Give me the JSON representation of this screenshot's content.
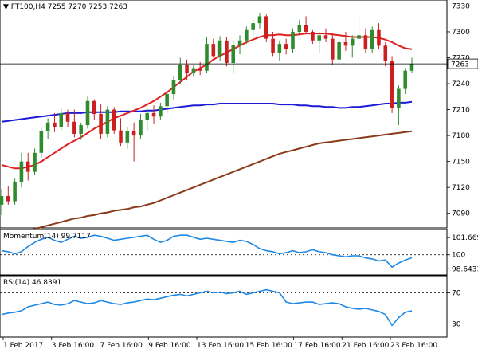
{
  "chart_data": {
    "type": "candlestick-with-indicators",
    "main": {
      "symbol_label": "FT100,H4",
      "ohlc_label": "7255 7270 7253 7263",
      "current_price": 7263,
      "price_label": "7263",
      "ylim": [
        7075,
        7335
      ],
      "yticks": [
        7330,
        7300,
        7270,
        7240,
        7210,
        7180,
        7150,
        7120,
        7090
      ],
      "candles": [
        {
          "o": 7100,
          "h": 7118,
          "l": 7088,
          "c": 7110
        },
        {
          "o": 7110,
          "h": 7122,
          "l": 7100,
          "c": 7104
        },
        {
          "o": 7104,
          "h": 7130,
          "l": 7100,
          "c": 7126
        },
        {
          "o": 7126,
          "h": 7160,
          "l": 7120,
          "c": 7150
        },
        {
          "o": 7150,
          "h": 7160,
          "l": 7128,
          "c": 7138
        },
        {
          "o": 7138,
          "h": 7165,
          "l": 7134,
          "c": 7160
        },
        {
          "o": 7160,
          "h": 7188,
          "l": 7155,
          "c": 7185
        },
        {
          "o": 7185,
          "h": 7200,
          "l": 7176,
          "c": 7195
        },
        {
          "o": 7195,
          "h": 7206,
          "l": 7184,
          "c": 7190
        },
        {
          "o": 7190,
          "h": 7212,
          "l": 7186,
          "c": 7206
        },
        {
          "o": 7206,
          "h": 7210,
          "l": 7190,
          "c": 7196
        },
        {
          "o": 7196,
          "h": 7210,
          "l": 7178,
          "c": 7182
        },
        {
          "o": 7182,
          "h": 7195,
          "l": 7175,
          "c": 7192
        },
        {
          "o": 7192,
          "h": 7225,
          "l": 7188,
          "c": 7220
        },
        {
          "o": 7220,
          "h": 7222,
          "l": 7198,
          "c": 7205
        },
        {
          "o": 7205,
          "h": 7216,
          "l": 7176,
          "c": 7182
        },
        {
          "o": 7182,
          "h": 7214,
          "l": 7178,
          "c": 7210
        },
        {
          "o": 7210,
          "h": 7213,
          "l": 7182,
          "c": 7186
        },
        {
          "o": 7186,
          "h": 7200,
          "l": 7168,
          "c": 7172
        },
        {
          "o": 7172,
          "h": 7190,
          "l": 7165,
          "c": 7185
        },
        {
          "o": 7185,
          "h": 7195,
          "l": 7150,
          "c": 7180
        },
        {
          "o": 7180,
          "h": 7205,
          "l": 7176,
          "c": 7198
        },
        {
          "o": 7198,
          "h": 7212,
          "l": 7186,
          "c": 7206
        },
        {
          "o": 7206,
          "h": 7215,
          "l": 7194,
          "c": 7202
        },
        {
          "o": 7202,
          "h": 7218,
          "l": 7198,
          "c": 7214
        },
        {
          "o": 7214,
          "h": 7232,
          "l": 7206,
          "c": 7228
        },
        {
          "o": 7228,
          "h": 7248,
          "l": 7222,
          "c": 7244
        },
        {
          "o": 7244,
          "h": 7270,
          "l": 7240,
          "c": 7262
        },
        {
          "o": 7262,
          "h": 7268,
          "l": 7244,
          "c": 7252
        },
        {
          "o": 7252,
          "h": 7262,
          "l": 7248,
          "c": 7258
        },
        {
          "o": 7258,
          "h": 7265,
          "l": 7250,
          "c": 7255
        },
        {
          "o": 7255,
          "h": 7294,
          "l": 7252,
          "c": 7286
        },
        {
          "o": 7286,
          "h": 7292,
          "l": 7270,
          "c": 7272
        },
        {
          "o": 7272,
          "h": 7295,
          "l": 7266,
          "c": 7290
        },
        {
          "o": 7290,
          "h": 7294,
          "l": 7260,
          "c": 7264
        },
        {
          "o": 7264,
          "h": 7290,
          "l": 7252,
          "c": 7285
        },
        {
          "o": 7285,
          "h": 7296,
          "l": 7274,
          "c": 7290
        },
        {
          "o": 7290,
          "h": 7306,
          "l": 7286,
          "c": 7302
        },
        {
          "o": 7302,
          "h": 7314,
          "l": 7296,
          "c": 7310
        },
        {
          "o": 7310,
          "h": 7322,
          "l": 7304,
          "c": 7318
        },
        {
          "o": 7318,
          "h": 7320,
          "l": 7288,
          "c": 7292
        },
        {
          "o": 7292,
          "h": 7300,
          "l": 7272,
          "c": 7276
        },
        {
          "o": 7276,
          "h": 7290,
          "l": 7266,
          "c": 7286
        },
        {
          "o": 7286,
          "h": 7292,
          "l": 7274,
          "c": 7280
        },
        {
          "o": 7280,
          "h": 7304,
          "l": 7276,
          "c": 7300
        },
        {
          "o": 7300,
          "h": 7314,
          "l": 7296,
          "c": 7308
        },
        {
          "o": 7308,
          "h": 7318,
          "l": 7298,
          "c": 7300
        },
        {
          "o": 7300,
          "h": 7302,
          "l": 7286,
          "c": 7290
        },
        {
          "o": 7290,
          "h": 7300,
          "l": 7276,
          "c": 7296
        },
        {
          "o": 7296,
          "h": 7304,
          "l": 7288,
          "c": 7292
        },
        {
          "o": 7292,
          "h": 7298,
          "l": 7262,
          "c": 7268
        },
        {
          "o": 7268,
          "h": 7292,
          "l": 7264,
          "c": 7288
        },
        {
          "o": 7288,
          "h": 7300,
          "l": 7278,
          "c": 7284
        },
        {
          "o": 7284,
          "h": 7296,
          "l": 7270,
          "c": 7292
        },
        {
          "o": 7292,
          "h": 7316,
          "l": 7284,
          "c": 7296
        },
        {
          "o": 7296,
          "h": 7304,
          "l": 7276,
          "c": 7280
        },
        {
          "o": 7280,
          "h": 7306,
          "l": 7276,
          "c": 7302
        },
        {
          "o": 7302,
          "h": 7310,
          "l": 7280,
          "c": 7284
        },
        {
          "o": 7284,
          "h": 7288,
          "l": 7260,
          "c": 7266
        },
        {
          "o": 7266,
          "h": 7272,
          "l": 7206,
          "c": 7212
        },
        {
          "o": 7212,
          "h": 7238,
          "l": 7192,
          "c": 7234
        },
        {
          "o": 7234,
          "h": 7258,
          "l": 7228,
          "c": 7255
        },
        {
          "o": 7255,
          "h": 7270,
          "l": 7253,
          "c": 7263
        }
      ],
      "ma_red": [
        7146,
        7144,
        7142,
        7142,
        7144,
        7146,
        7150,
        7155,
        7160,
        7165,
        7170,
        7174,
        7178,
        7183,
        7188,
        7192,
        7196,
        7200,
        7203,
        7206,
        7209,
        7212,
        7216,
        7220,
        7225,
        7230,
        7236,
        7242,
        7248,
        7254,
        7258,
        7262,
        7268,
        7272,
        7276,
        7280,
        7284,
        7288,
        7291,
        7294,
        7296,
        7296,
        7297,
        7296,
        7296,
        7297,
        7298,
        7298,
        7298,
        7298,
        7297,
        7296,
        7295,
        7294,
        7294,
        7294,
        7294,
        7293,
        7291,
        7288,
        7284,
        7281,
        7280
      ],
      "ma_blue": [
        7196,
        7197,
        7198,
        7199,
        7200,
        7201,
        7202,
        7203,
        7204,
        7205,
        7206,
        7206,
        7206,
        7207,
        7207,
        7207,
        7207,
        7207,
        7208,
        7208,
        7208,
        7208,
        7209,
        7209,
        7210,
        7211,
        7212,
        7213,
        7214,
        7215,
        7215,
        7216,
        7216,
        7217,
        7217,
        7217,
        7217,
        7217,
        7217,
        7217,
        7217,
        7217,
        7216,
        7216,
        7216,
        7215,
        7215,
        7214,
        7214,
        7213,
        7213,
        7212,
        7212,
        7213,
        7213,
        7214,
        7215,
        7216,
        7217,
        7217,
        7218,
        7218,
        7219
      ],
      "ma_brown": [
        7062,
        7064,
        7066,
        7068,
        7070,
        7072,
        7074,
        7076,
        7078,
        7080,
        7082,
        7084,
        7085,
        7087,
        7088,
        7090,
        7091,
        7093,
        7094,
        7095,
        7097,
        7098,
        7100,
        7102,
        7105,
        7108,
        7111,
        7114,
        7117,
        7120,
        7123,
        7126,
        7129,
        7132,
        7135,
        7138,
        7141,
        7144,
        7147,
        7150,
        7153,
        7156,
        7159,
        7161,
        7163,
        7165,
        7167,
        7169,
        7171,
        7172,
        7173,
        7174,
        7175,
        7176,
        7177,
        7178,
        7179,
        7180,
        7181,
        7182,
        7183,
        7184,
        7185
      ]
    },
    "momentum": {
      "label": "Momentum(14) 99.7117",
      "ylim": [
        98.2,
        102.3
      ],
      "yticks": [
        {
          "v": 101.6696,
          "label": "101.6696"
        },
        {
          "v": 100,
          "label": "100"
        },
        {
          "v": 98.6433,
          "label": "98.6433"
        }
      ],
      "level": 100,
      "values": [
        100.4,
        100.3,
        100.1,
        100.3,
        100.8,
        101.2,
        101.5,
        101.7,
        101.4,
        101.2,
        101.5,
        101.8,
        101.6,
        101.7,
        101.9,
        101.8,
        101.6,
        101.4,
        101.5,
        101.6,
        101.7,
        101.8,
        101.9,
        101.5,
        101.2,
        101.4,
        101.8,
        101.9,
        101.9,
        101.7,
        101.5,
        101.6,
        101.5,
        101.4,
        101.3,
        101.2,
        101.4,
        101.3,
        101.0,
        100.6,
        100.4,
        100.3,
        100.1,
        100.2,
        100.4,
        100.2,
        100.3,
        100.5,
        100.3,
        100.2,
        100.0,
        99.9,
        99.8,
        99.9,
        99.9,
        99.7,
        99.6,
        99.4,
        99.5,
        98.8,
        99.2,
        99.5,
        99.7117
      ]
    },
    "rsi": {
      "label": "RSI(14) 46.8391",
      "ylim": [
        15,
        90
      ],
      "yticks": [
        {
          "v": 70,
          "label": "70"
        },
        {
          "v": 30,
          "label": "30"
        }
      ],
      "levels": [
        70,
        30
      ],
      "values": [
        42,
        44,
        45,
        47,
        52,
        54,
        56,
        58,
        55,
        54,
        56,
        60,
        58,
        56,
        57,
        60,
        58,
        56,
        55,
        57,
        58,
        60,
        62,
        61,
        63,
        65,
        67,
        68,
        66,
        68,
        70,
        72,
        70,
        71,
        69,
        70,
        72,
        68,
        70,
        72,
        74,
        72,
        70,
        58,
        56,
        57,
        58,
        58,
        55,
        56,
        57,
        56,
        52,
        50,
        49,
        50,
        48,
        46,
        42,
        28,
        38,
        45,
        46.8391
      ]
    },
    "x_labels": [
      "1 Feb 2017",
      "3 Feb 16:00",
      "7 Feb 16:00",
      "9 Feb 16:00",
      "13 Feb 16:00",
      "15 Feb 16:00",
      "17 Feb 16:00",
      "21 Feb 16:00",
      "23 Feb 16:00"
    ],
    "colors": {
      "bull": "#2e8b2e",
      "bear": "#cc2020",
      "ma_red": "#e02020",
      "ma_blue": "#1c1cd8",
      "ma_brown": "#8b3a1a",
      "momentum_line": "#1e88e5",
      "rsi_line": "#1e88e5",
      "grid": "#000000"
    }
  }
}
